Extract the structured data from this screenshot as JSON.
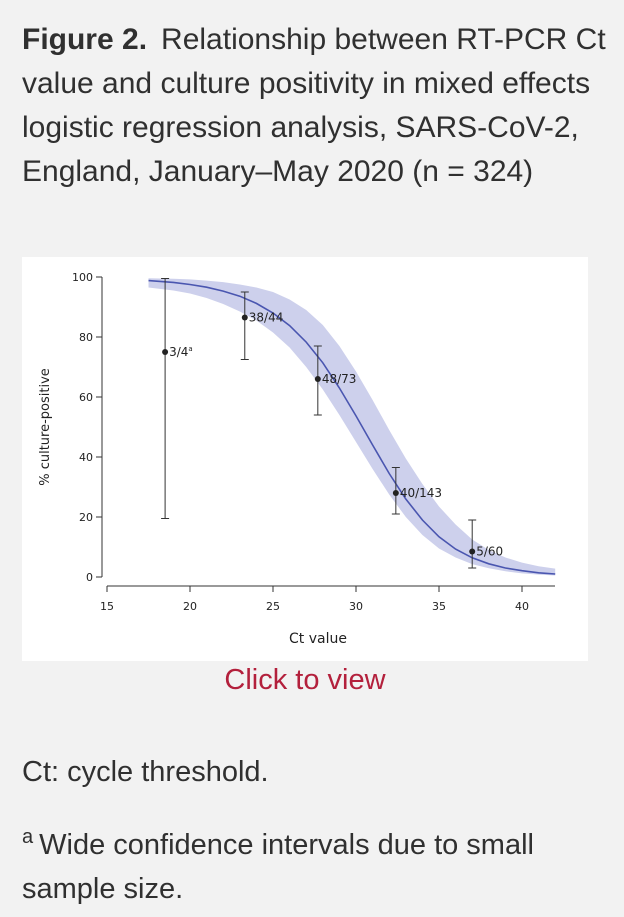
{
  "caption": {
    "lead": "Figure 2.",
    "text": "Relationship between RT-PCR Ct value and culture positivity in mixed effects logistic regression analysis, SARS-CoV-2, England, January–May 2020 (n = 324)"
  },
  "link_label": "Click to view",
  "notes": {
    "ct": "Ct: cycle threshold.",
    "a_marker": "a",
    "a_text": "Wide confidence intervals due to small sample size."
  },
  "colors": {
    "band": "#cdd0ec",
    "curve": "#4a56b0",
    "point": "#222222",
    "link": "#b3203c"
  },
  "chart_data": {
    "type": "scatter",
    "xlabel": "Ct value",
    "ylabel": "% culture-positive",
    "xlim": [
      15,
      42
    ],
    "ylim": [
      0,
      100
    ],
    "x_ticks": [
      15,
      20,
      25,
      30,
      35,
      40
    ],
    "y_ticks": [
      0,
      20,
      40,
      60,
      80,
      100
    ],
    "grid": false,
    "points": [
      {
        "x": 18.5,
        "y": 75,
        "lo": 19.5,
        "hi": 99.5,
        "label": "3/4",
        "sup": "a"
      },
      {
        "x": 23.3,
        "y": 86.5,
        "lo": 72.5,
        "hi": 95,
        "label": "38/44",
        "sup": ""
      },
      {
        "x": 27.7,
        "y": 66,
        "lo": 54,
        "hi": 77,
        "label": "48/73",
        "sup": ""
      },
      {
        "x": 32.4,
        "y": 28,
        "lo": 21,
        "hi": 36.5,
        "label": "40/143",
        "sup": ""
      },
      {
        "x": 37,
        "y": 8.5,
        "lo": 3,
        "hi": 19,
        "label": "5/60",
        "sup": ""
      }
    ],
    "fit_curve": {
      "x": [
        17.5,
        19,
        20,
        21,
        22,
        23,
        24,
        25,
        26,
        27,
        28,
        29,
        30,
        31,
        32,
        33,
        34,
        35,
        36,
        37,
        38,
        39,
        40,
        41,
        42
      ],
      "y": [
        98.8,
        98.2,
        97.5,
        96.6,
        95.3,
        93.6,
        91.2,
        88.0,
        83.8,
        78.3,
        71.4,
        63.0,
        53.7,
        44.0,
        34.5,
        26.0,
        19.0,
        13.4,
        9.3,
        6.4,
        4.4,
        3.0,
        2.1,
        1.4,
        1.0
      ],
      "lo": [
        96.5,
        95.5,
        94.5,
        93.0,
        91.0,
        88.5,
        85.5,
        81.5,
        76.5,
        70.0,
        62.5,
        54.0,
        45.0,
        36.0,
        27.5,
        20.0,
        14.0,
        9.5,
        6.5,
        4.3,
        2.9,
        1.9,
        1.2,
        0.8,
        0.5
      ],
      "hi": [
        99.6,
        99.4,
        99.2,
        98.8,
        98.3,
        97.5,
        96.5,
        95.0,
        92.5,
        89.0,
        84.0,
        77.0,
        68.5,
        59.0,
        49.0,
        39.5,
        31.0,
        23.5,
        17.5,
        12.5,
        9.0,
        6.5,
        4.8,
        3.6,
        2.8
      ]
    }
  }
}
